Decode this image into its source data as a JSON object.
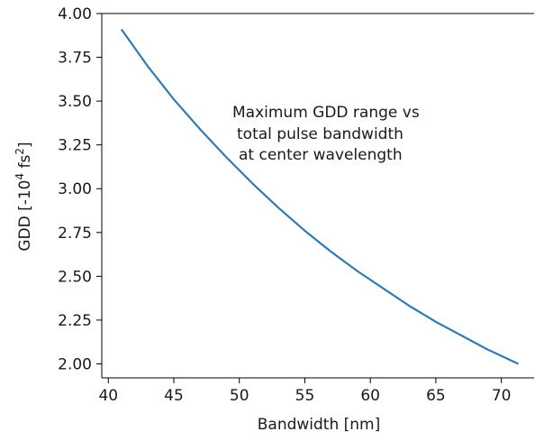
{
  "chart_data": {
    "type": "line",
    "title": "",
    "xlabel": "Bandwidth [nm]",
    "ylabel": {
      "prefix": "GDD [-10",
      "exp": "4",
      "mid": " fs",
      "exp2": "2",
      "suffix": "]"
    },
    "xlim": [
      39.5,
      72.5
    ],
    "ylim": [
      1.92,
      4.0
    ],
    "xticks": [
      40,
      45,
      50,
      55,
      60,
      65,
      70
    ],
    "yticks": [
      2.0,
      2.25,
      2.5,
      2.75,
      3.0,
      3.25,
      3.5,
      3.75,
      4.0
    ],
    "xtick_labels": [
      "40",
      "45",
      "50",
      "55",
      "60",
      "65",
      "70"
    ],
    "ytick_labels": [
      "2.00",
      "2.25",
      "2.50",
      "2.75",
      "3.00",
      "3.25",
      "3.50",
      "3.75",
      "4.00"
    ],
    "annotation": [
      "Maximum GDD range vs",
      "total pulse bandwidth",
      "at center wavelength"
    ],
    "grid": false,
    "series": [
      {
        "color": "#2f7bb5",
        "x": [
          41.0,
          43.0,
          45.0,
          47.0,
          49.0,
          51.0,
          53.0,
          55.0,
          57.0,
          59.0,
          61.0,
          63.0,
          65.0,
          67.0,
          69.0,
          71.3
        ],
        "y": [
          3.91,
          3.7,
          3.51,
          3.34,
          3.18,
          3.03,
          2.89,
          2.76,
          2.64,
          2.53,
          2.43,
          2.33,
          2.24,
          2.16,
          2.08,
          2.0
        ]
      }
    ]
  }
}
